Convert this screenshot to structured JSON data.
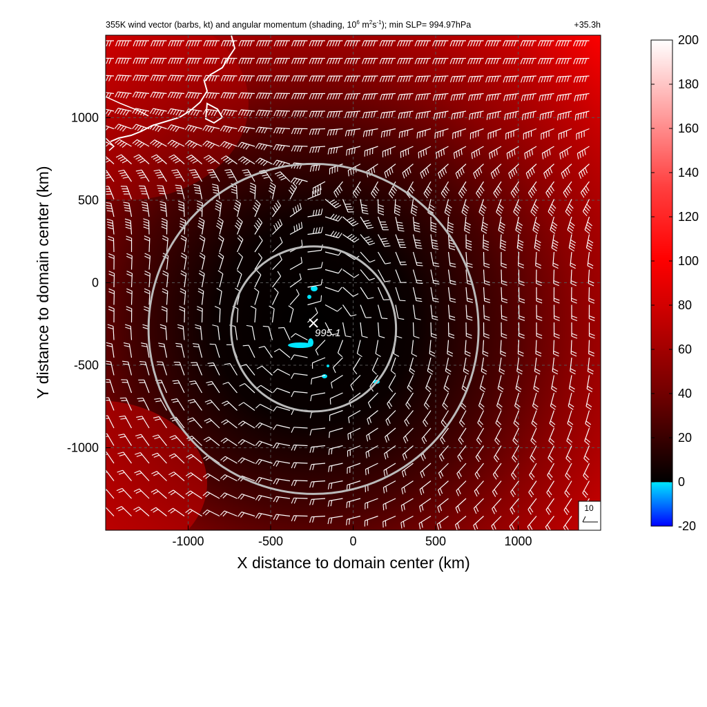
{
  "chart_data": {
    "type": "heatmap",
    "title": "355K wind vector (barbs, kt) and angular momentum (shading, 10",
    "title_sup1": "6",
    "title_units_m": " m",
    "title_sup2": "2",
    "title_units_s": "s",
    "title_sup3": "-1",
    "title_tail": "); min SLP= 994.97hPa",
    "time_label": "+35.3h",
    "xlabel": "X distance to domain center (km)",
    "ylabel": "Y distance to domain center (km)",
    "xlim": [
      -1500,
      1500
    ],
    "ylim": [
      -1500,
      1500
    ],
    "x_ticks": [
      -1000,
      -500,
      0,
      500,
      1000
    ],
    "y_ticks": [
      -1000,
      -500,
      0,
      500,
      1000
    ],
    "x_tick_labels": [
      "-1000",
      "-500",
      "0",
      "500",
      "1000"
    ],
    "y_tick_labels": [
      "-1000",
      "-500",
      "0",
      "500",
      "1000"
    ],
    "grid": true,
    "colorbar": {
      "range": [
        -20,
        200
      ],
      "ticks": [
        -20,
        0,
        20,
        40,
        60,
        80,
        100,
        120,
        140,
        160,
        180,
        200
      ],
      "tick_labels": [
        "-20",
        "0",
        "20",
        "40",
        "60",
        "80",
        "100",
        "120",
        "140",
        "160",
        "180",
        "200"
      ]
    },
    "center": {
      "x": -240,
      "y": -280,
      "label": "995.1"
    },
    "circles_radius_km": [
      500,
      1000
    ],
    "barb_reference": {
      "label": "10",
      "speed_kt": 10
    },
    "colors": {
      "background_low": "#000000",
      "mid": "#b00000",
      "high": "#ff0000",
      "top": "#ffffff",
      "negative": "#00e5ff",
      "negative_low": "#0000ff",
      "circle": "#bbbbbb",
      "coast": "#ffffff"
    }
  }
}
